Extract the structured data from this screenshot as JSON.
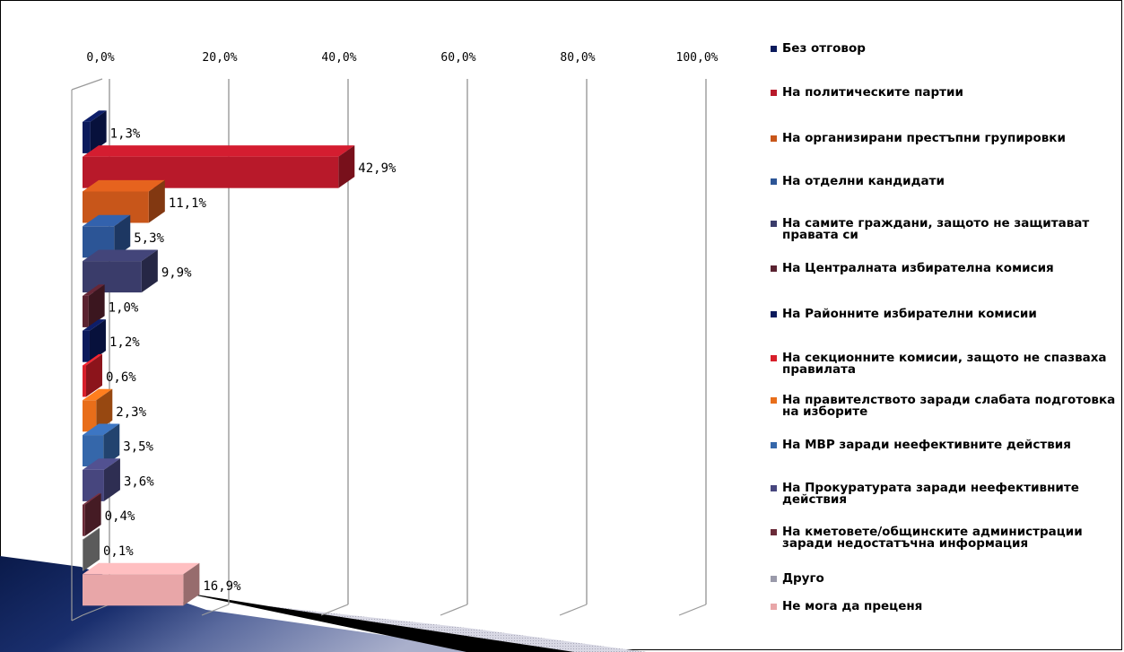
{
  "chart_data": {
    "type": "bar",
    "orientation": "horizontal",
    "style": "3d",
    "axis_ticks": [
      "0,0%",
      "20,0%",
      "40,0%",
      "60,0%",
      "80,0%",
      "100,0%"
    ],
    "xlim": [
      0,
      100
    ],
    "grid": true,
    "legend_position": "right",
    "categories": [
      "Без отговор",
      "На политическите партии",
      "На организирани престъпни групировки",
      "На отделни кандидати",
      "На самите граждани, защото не защитават правата си",
      "На Централната избирателна комисия",
      "На Районните избирателни комисии",
      "На секционните комисии, защото не спазваха правилата",
      "На правителството заради слабата подготовка на изборите",
      "На МВР заради неефективните действия",
      "На Прокуратурата заради неефективните действия",
      "На кметовете/общинските администрации заради недостатъчна информация",
      "Друго",
      "Не мога да преценя"
    ],
    "values": [
      1.3,
      42.9,
      11.1,
      5.3,
      9.9,
      1.0,
      1.2,
      0.6,
      2.3,
      3.5,
      3.6,
      0.4,
      0.1,
      16.9
    ],
    "data_labels": [
      "1,3%",
      "42,9%",
      "11,1%",
      "5,3%",
      "9,9%",
      "1,0%",
      "1,2%",
      "0,6%",
      "2,3%",
      "3,5%",
      "3,6%",
      "0,4%",
      "0,1%",
      "16,9%"
    ],
    "colors": [
      "#0b1a5c",
      "#b8192a",
      "#c8561a",
      "#2c5596",
      "#3a3c6a",
      "#5a2230",
      "#0b1a5c",
      "#d81f2a",
      "#e86e1a",
      "#3567aa",
      "#47467e",
      "#6a2a38",
      "#8c8c8c",
      "#e8a6a8"
    ]
  },
  "legend": {
    "items": [
      {
        "label": "Без отговор",
        "color": "#0b1a5c"
      },
      {
        "label": "На политическите партии",
        "color": "#b8192a"
      },
      {
        "label": "На организирани престъпни групировки",
        "color": "#c8561a"
      },
      {
        "label": "На отделни кандидати",
        "color": "#2c5596"
      },
      {
        "label": "На самите граждани, защото не защитават правата си",
        "color": "#3a3c6a"
      },
      {
        "label": "На Централната избирателна комисия",
        "color": "#5a2230"
      },
      {
        "label": "На Районните избирателни комисии",
        "color": "#0b1a5c"
      },
      {
        "label": "На секционните комисии, защото не спазваха правилата",
        "color": "#d81f2a"
      },
      {
        "label": "На правителството заради слабата подготовка на изборите",
        "color": "#e86e1a"
      },
      {
        "label": "На МВР заради неефективните действия",
        "color": "#3567aa"
      },
      {
        "label": "На Прокуратурата заради неефективните действия",
        "color": "#47467e"
      },
      {
        "label": "На кметовете/общинските администрации заради недостатъчна информация",
        "color": "#6a2a38"
      },
      {
        "label": "Друго",
        "color": "#9a9aaa"
      },
      {
        "label": "Не мога да преценя",
        "color": "#e8a6a8"
      }
    ]
  }
}
